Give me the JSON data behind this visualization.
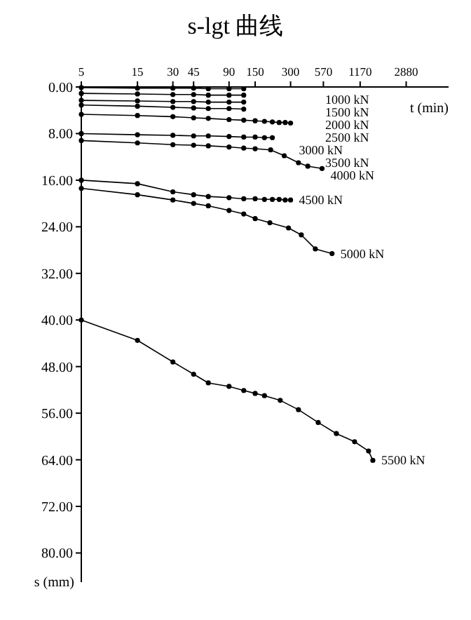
{
  "chart_data": {
    "type": "line",
    "title": "s-lgt  曲线",
    "xlabel": "t (min)",
    "ylabel": "s (mm)",
    "log": "x",
    "marker": "circle",
    "xlim": [
      5,
      6600
    ],
    "ylim": [
      85,
      0
    ],
    "xticks": [
      5,
      15,
      30,
      45,
      90,
      150,
      300,
      570,
      1170,
      2880
    ],
    "yticks": [
      {
        "value": 0,
        "label": "0.00"
      },
      {
        "value": 8,
        "label": "8.00"
      },
      {
        "value": 16,
        "label": "16.00"
      },
      {
        "value": 24,
        "label": "24.00"
      },
      {
        "value": 32,
        "label": "32.00"
      },
      {
        "value": 40,
        "label": "40.00"
      },
      {
        "value": 48,
        "label": "48.00"
      },
      {
        "value": 56,
        "label": "56.00"
      },
      {
        "value": 64,
        "label": "64.00"
      },
      {
        "value": 72,
        "label": "72.00"
      },
      {
        "value": 80,
        "label": "80.00"
      }
    ],
    "series": [
      {
        "name": "1000 kN",
        "color": "#000000",
        "x": [
          5,
          15,
          30,
          45,
          60,
          90,
          120
        ],
        "values": [
          0.1,
          0.2,
          0.2,
          0.2,
          0.3,
          0.3,
          0.3
        ]
      },
      {
        "name": "1500 kN",
        "color": "#000000",
        "x": [
          5,
          15,
          30,
          45,
          60,
          90,
          120
        ],
        "values": [
          1.1,
          1.2,
          1.3,
          1.3,
          1.4,
          1.4,
          1.4
        ]
      },
      {
        "name": "2000 kN",
        "color": "#000000",
        "x": [
          5,
          15,
          30,
          45,
          60,
          90,
          120
        ],
        "values": [
          2.3,
          2.4,
          2.5,
          2.5,
          2.6,
          2.6,
          2.6
        ]
      },
      {
        "name": "2500 kN",
        "color": "#000000",
        "x": [
          5,
          15,
          30,
          45,
          60,
          90,
          120
        ],
        "values": [
          3.1,
          3.3,
          3.5,
          3.6,
          3.7,
          3.7,
          3.8
        ]
      },
      {
        "name": "3000 kN",
        "color": "#000000",
        "x": [
          5,
          15,
          30,
          45,
          60,
          90,
          120,
          150,
          180,
          210,
          240,
          270,
          300
        ],
        "values": [
          4.7,
          4.9,
          5.1,
          5.3,
          5.4,
          5.6,
          5.7,
          5.8,
          5.9,
          6.0,
          6.1,
          6.1,
          6.2
        ]
      },
      {
        "name": "3500 kN",
        "color": "#000000",
        "x": [
          5,
          15,
          30,
          45,
          60,
          90,
          120,
          150,
          180,
          210
        ],
        "values": [
          8.0,
          8.2,
          8.3,
          8.4,
          8.4,
          8.5,
          8.6,
          8.6,
          8.7,
          8.7
        ]
      },
      {
        "name": "4000 kN",
        "color": "#000000",
        "x": [
          5,
          15,
          30,
          45,
          60,
          90,
          120,
          150,
          203,
          265,
          350,
          420,
          555
        ],
        "values": [
          9.2,
          9.6,
          9.9,
          10.0,
          10.1,
          10.3,
          10.5,
          10.6,
          10.8,
          11.8,
          13.0,
          13.6,
          14.0
        ]
      },
      {
        "name": "4500 kN",
        "color": "#000000",
        "x": [
          5,
          15,
          30,
          45,
          60,
          90,
          120,
          150,
          180,
          210,
          240,
          270,
          300
        ],
        "values": [
          16.0,
          16.6,
          18.0,
          18.5,
          18.8,
          19.0,
          19.2,
          19.2,
          19.3,
          19.3,
          19.3,
          19.4,
          19.4
        ]
      },
      {
        "name": "5000 kN",
        "color": "#000000",
        "x": [
          5,
          15,
          30,
          45,
          60,
          90,
          120,
          150,
          200,
          288,
          370,
          487,
          675
        ],
        "values": [
          17.4,
          18.5,
          19.4,
          20.0,
          20.4,
          21.2,
          21.8,
          22.6,
          23.3,
          24.2,
          25.4,
          27.8,
          28.6
        ]
      },
      {
        "name": "5500 kN",
        "color": "#000000",
        "x": [
          5,
          15,
          30,
          45,
          60,
          90,
          120,
          150,
          180,
          245,
          350,
          515,
          735,
          1050,
          1380,
          1500
        ],
        "values": [
          40.0,
          43.5,
          47.2,
          49.3,
          50.8,
          51.4,
          52.1,
          52.6,
          53.0,
          53.8,
          55.4,
          57.6,
          59.5,
          60.9,
          62.5,
          64.1
        ]
      }
    ]
  }
}
